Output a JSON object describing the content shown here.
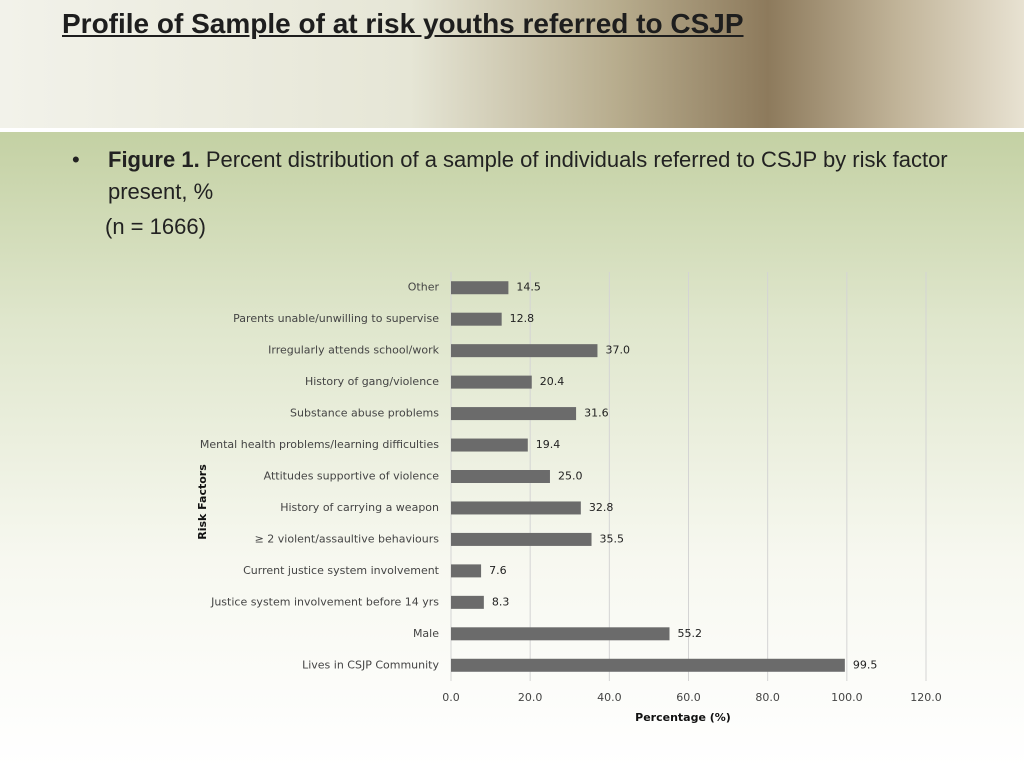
{
  "slide": {
    "title": "Profile of Sample of at risk youths referred to CSJP",
    "bullet_label": "Figure 1.",
    "bullet_text": "Percent distribution of a sample of individuals referred to CSJP by risk factor present, %",
    "n_note": "(n = 1666)"
  },
  "chart_data": {
    "type": "hbar",
    "x_label": "Percentage (%)",
    "y_label": "Risk Factors",
    "categories": [
      "Other",
      "Parents unable/unwilling to supervise",
      "Irregularly attends school/work",
      "History of gang/violence",
      "Substance abuse problems",
      "Mental health problems/learning difficulties",
      "Attitudes supportive of violence",
      "History of carrying a weapon",
      "≥ 2 violent/assaultive behaviours",
      "Current justice system involvement",
      "Justice system involvement before 14 yrs",
      "Male",
      "Lives in CSJP Community"
    ],
    "values": [
      14.5,
      12.8,
      37.0,
      20.4,
      31.6,
      19.4,
      25.0,
      32.8,
      35.5,
      7.6,
      8.3,
      55.2,
      99.5
    ],
    "value_labels": [
      "14.5",
      "12.8",
      "37.0",
      "20.4",
      "31.6",
      "19.4",
      "25.0",
      "32.8",
      "35.5",
      "7.6",
      "8.3",
      "55.2",
      "99.5"
    ],
    "color": "#6b6b6b",
    "xlim": [
      0,
      120
    ],
    "xticks": [
      {
        "value": 0,
        "label": "0.0"
      },
      {
        "value": 20,
        "label": "20.0"
      },
      {
        "value": 40,
        "label": "40.0"
      },
      {
        "value": 60,
        "label": "60.0"
      },
      {
        "value": 80,
        "label": "80.0"
      },
      {
        "value": 100,
        "label": "100.0"
      },
      {
        "value": 120,
        "label": "120.0"
      }
    ],
    "grid": true
  }
}
